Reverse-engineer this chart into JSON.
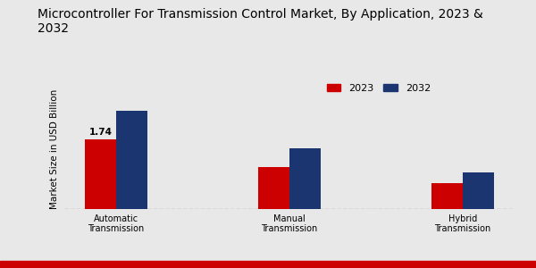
{
  "title": "Microcontroller For Transmission Control Market, By Application, 2023 &\n2032",
  "ylabel": "Market Size in USD Billion",
  "categories": [
    "Automatic\nTransmission",
    "Manual\nTransmission",
    "Hybrid\nTransmission"
  ],
  "values_2023": [
    1.74,
    1.05,
    0.65
  ],
  "values_2032": [
    2.45,
    1.52,
    0.92
  ],
  "color_2023": "#cc0000",
  "color_2032": "#1a3570",
  "background_color": "#e8e8e8",
  "bar_annotation": "1.74",
  "legend_labels": [
    "2023",
    "2032"
  ],
  "title_fontsize": 10,
  "ylabel_fontsize": 7.5,
  "tick_fontsize": 7,
  "bar_width": 0.18,
  "ylim": [
    0,
    3.0
  ],
  "bottom_bar_color": "#cc0000"
}
